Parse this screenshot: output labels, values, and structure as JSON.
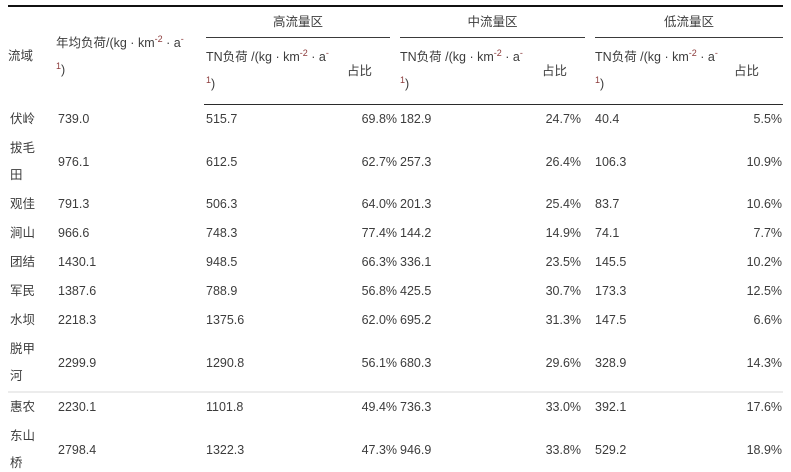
{
  "colors": {
    "text": "#3c3c3c",
    "superscript_accent": "#8b3a3a",
    "rule_heavy": "#111111",
    "rule_thin": "#2b2b2b",
    "divider_light": "#ececec"
  },
  "table": {
    "columns": {
      "basin": "流域",
      "annual_load": {
        "line1": "年均负荷/(kg · km^-2^ · a^-^",
        "line2": "^1^)"
      },
      "groups": [
        {
          "label": "高流量区"
        },
        {
          "label": "中流量区"
        },
        {
          "label": "低流量区"
        }
      ],
      "tn_load": {
        "line1": "TN负荷 /(kg · km^-2^ · a^-^",
        "line2": "^1^)"
      },
      "share": "占比"
    },
    "rows": [
      {
        "basin": "伏岭",
        "annual": "739.0",
        "high_tn": "515.7",
        "high_pct": "69.8%",
        "mid_tn": "182.9",
        "mid_pct": "24.7%",
        "low_tn": "40.4",
        "low_pct": "5.5%",
        "divider_above": false
      },
      {
        "basin": "拔毛田",
        "annual": "976.1",
        "high_tn": "612.5",
        "high_pct": "62.7%",
        "mid_tn": "257.3",
        "mid_pct": "26.4%",
        "low_tn": "106.3",
        "low_pct": "10.9%",
        "divider_above": false
      },
      {
        "basin": "观佳",
        "annual": "791.3",
        "high_tn": "506.3",
        "high_pct": "64.0%",
        "mid_tn": "201.3",
        "mid_pct": "25.4%",
        "low_tn": "83.7",
        "low_pct": "10.6%",
        "divider_above": false
      },
      {
        "basin": "涧山",
        "annual": "966.6",
        "high_tn": "748.3",
        "high_pct": "77.4%",
        "mid_tn": "144.2",
        "mid_pct": "14.9%",
        "low_tn": "74.1",
        "low_pct": "7.7%",
        "divider_above": false
      },
      {
        "basin": "团结",
        "annual": "1430.1",
        "high_tn": "948.5",
        "high_pct": "66.3%",
        "mid_tn": "336.1",
        "mid_pct": "23.5%",
        "low_tn": "145.5",
        "low_pct": "10.2%",
        "divider_above": false
      },
      {
        "basin": "军民",
        "annual": "1387.6",
        "high_tn": "788.9",
        "high_pct": "56.8%",
        "mid_tn": "425.5",
        "mid_pct": "30.7%",
        "low_tn": "173.3",
        "low_pct": "12.5%",
        "divider_above": false
      },
      {
        "basin": "水坝",
        "annual": "2218.3",
        "high_tn": "1375.6",
        "high_pct": "62.0%",
        "mid_tn": "695.2",
        "mid_pct": "31.3%",
        "low_tn": "147.5",
        "low_pct": "6.6%",
        "divider_above": false
      },
      {
        "basin": "脱甲河",
        "annual": "2299.9",
        "high_tn": "1290.8",
        "high_pct": "56.1%",
        "mid_tn": "680.3",
        "mid_pct": "29.6%",
        "low_tn": "328.9",
        "low_pct": "14.3%",
        "divider_above": false
      },
      {
        "basin": "惠农",
        "annual": "2230.1",
        "high_tn": "1101.8",
        "high_pct": "49.4%",
        "mid_tn": "736.3",
        "mid_pct": "33.0%",
        "low_tn": "392.1",
        "low_pct": "17.6%",
        "divider_above": true
      },
      {
        "basin": "东山桥",
        "annual": "2798.4",
        "high_tn": "1322.3",
        "high_pct": "47.3%",
        "mid_tn": "946.9",
        "mid_pct": "33.8%",
        "low_tn": "529.2",
        "low_pct": "18.9%",
        "divider_above": false
      }
    ]
  }
}
